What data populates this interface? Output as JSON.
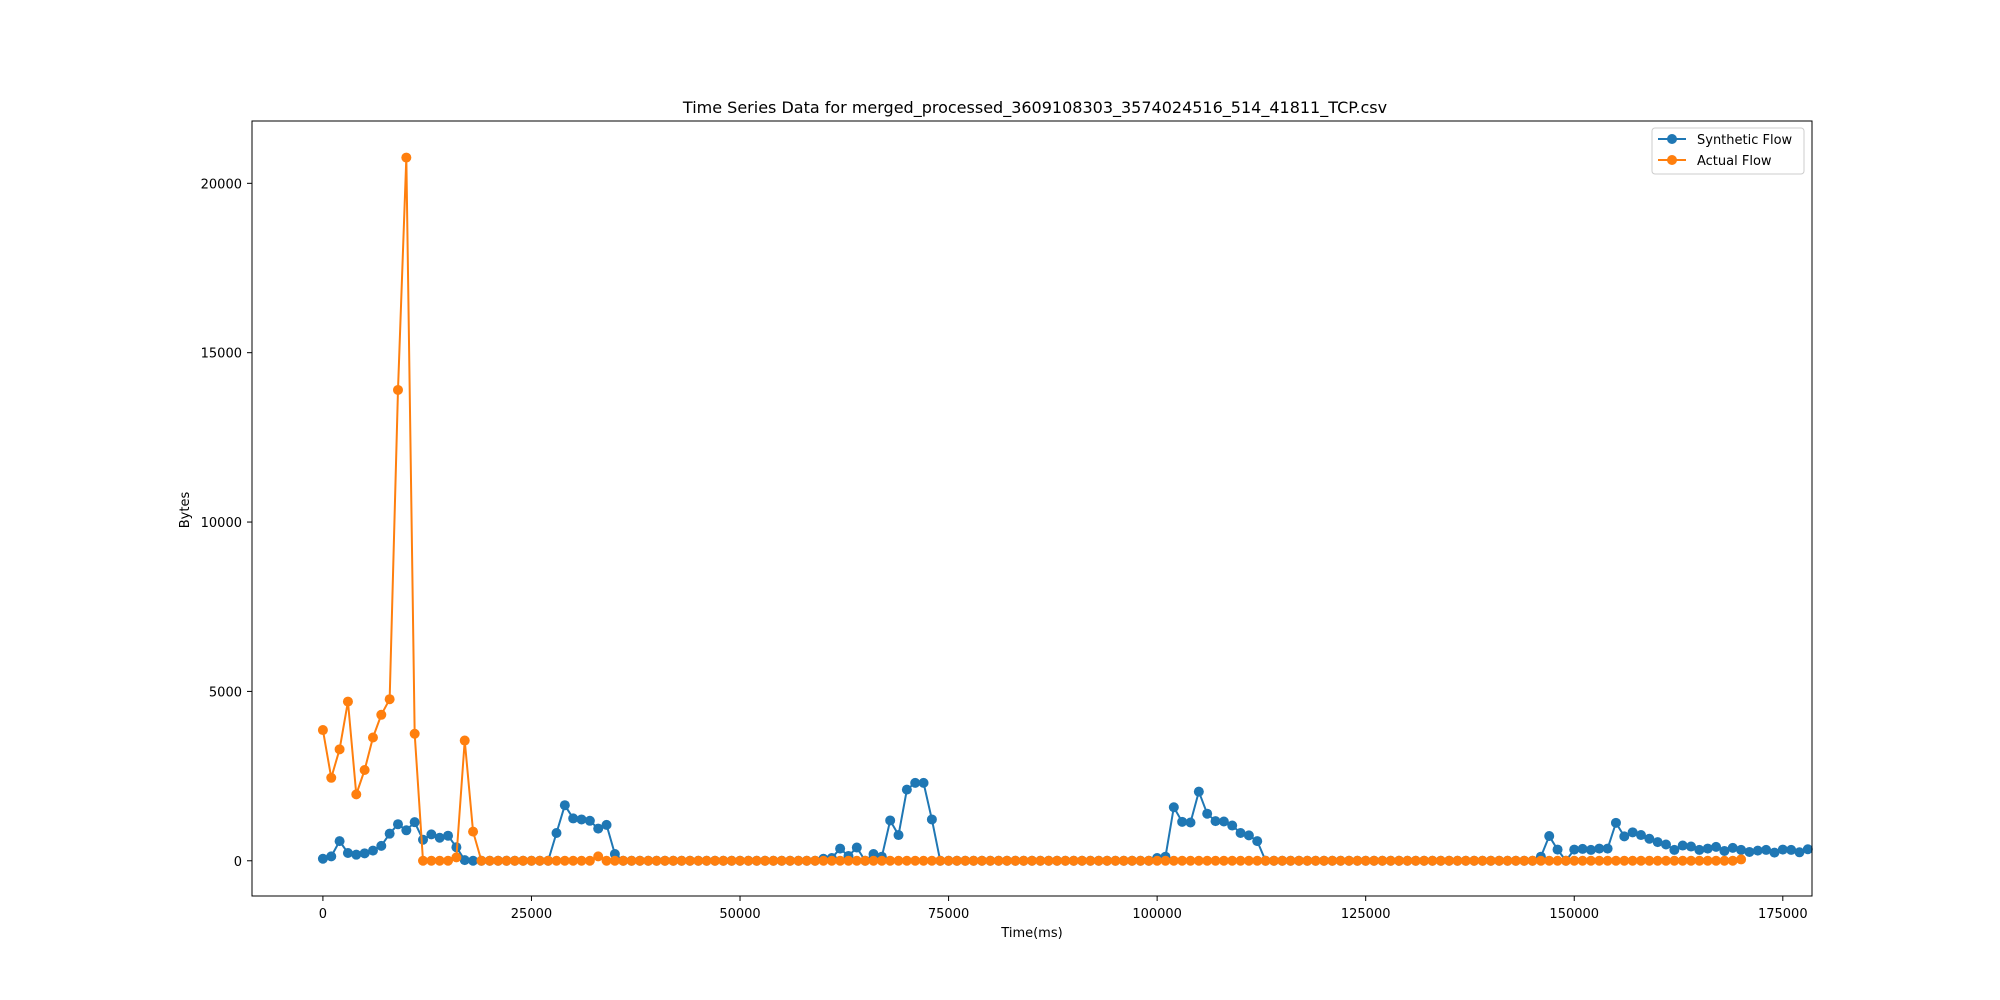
{
  "chart_data": {
    "type": "line",
    "title": "Time Series Data for merged_processed_3609108303_3574024516_514_41811_TCP.csv",
    "xlabel": "Time(ms)",
    "ylabel": "Bytes",
    "xlim": [
      -8500,
      178500
    ],
    "ylim": [
      -1040,
      21840
    ],
    "xticks": [
      0,
      25000,
      50000,
      75000,
      100000,
      125000,
      150000,
      175000
    ],
    "xtick_labels": [
      "0",
      "25000",
      "50000",
      "75000",
      "100000",
      "125000",
      "150000",
      "175000"
    ],
    "yticks": [
      0,
      5000,
      10000,
      15000,
      20000
    ],
    "ytick_labels": [
      "0",
      "5000",
      "10000",
      "15000",
      "20000"
    ],
    "grid": false,
    "legend_position": "top-right",
    "x_step": 1000,
    "x_start": 0,
    "series": [
      {
        "name": "Synthetic Flow",
        "color": "#1f77b4",
        "values": [
          60,
          130,
          580,
          230,
          180,
          220,
          300,
          440,
          800,
          1080,
          900,
          1140,
          620,
          780,
          680,
          740,
          400,
          20,
          0,
          0,
          0,
          0,
          0,
          0,
          0,
          0,
          0,
          0,
          820,
          1640,
          1250,
          1220,
          1180,
          950,
          1060,
          200,
          0,
          0,
          0,
          0,
          0,
          0,
          0,
          0,
          0,
          0,
          0,
          0,
          0,
          0,
          0,
          0,
          0,
          0,
          0,
          0,
          0,
          0,
          0,
          0,
          60,
          80,
          360,
          140,
          390,
          0,
          200,
          120,
          1190,
          760,
          2100,
          2300,
          2300,
          1220,
          0,
          0,
          0,
          0,
          0,
          0,
          0,
          0,
          0,
          0,
          0,
          0,
          0,
          0,
          0,
          0,
          0,
          0,
          0,
          0,
          0,
          0,
          0,
          0,
          0,
          0,
          80,
          120,
          1580,
          1150,
          1130,
          2040,
          1390,
          1170,
          1160,
          1040,
          820,
          750,
          580,
          0,
          0,
          0,
          0,
          0,
          0,
          0,
          0,
          0,
          0,
          0,
          0,
          0,
          0,
          0,
          0,
          0,
          0,
          0,
          0,
          0,
          0,
          0,
          0,
          0,
          0,
          0,
          0,
          0,
          0,
          0,
          0,
          0,
          120,
          730,
          330,
          0,
          330,
          350,
          320,
          360,
          360,
          1120,
          720,
          840,
          760,
          650,
          550,
          480,
          320,
          450,
          420,
          320,
          360,
          410,
          290,
          380,
          320,
          260,
          300,
          320,
          240,
          330,
          320,
          250,
          340
        ]
      },
      {
        "name": "Actual Flow",
        "color": "#ff7f0e",
        "values": [
          3860,
          2450,
          3290,
          4700,
          1960,
          2680,
          3640,
          4310,
          4770,
          13900,
          20760,
          3750,
          0,
          0,
          0,
          0,
          100,
          3550,
          860,
          0,
          0,
          0,
          0,
          0,
          0,
          0,
          0,
          0,
          0,
          0,
          0,
          0,
          0,
          130,
          0,
          0,
          0,
          0,
          0,
          0,
          0,
          0,
          0,
          0,
          0,
          0,
          0,
          0,
          0,
          0,
          0,
          0,
          0,
          0,
          0,
          0,
          0,
          0,
          0,
          0,
          0,
          0,
          0,
          0,
          0,
          0,
          0,
          0,
          0,
          0,
          0,
          0,
          0,
          0,
          0,
          0,
          0,
          0,
          0,
          0,
          0,
          0,
          0,
          0,
          0,
          0,
          0,
          0,
          0,
          0,
          0,
          0,
          0,
          0,
          0,
          0,
          0,
          0,
          0,
          0,
          0,
          0,
          0,
          0,
          0,
          0,
          0,
          0,
          0,
          0,
          0,
          0,
          0,
          0,
          0,
          0,
          0,
          0,
          0,
          0,
          0,
          0,
          0,
          0,
          0,
          0,
          0,
          0,
          0,
          0,
          0,
          0,
          0,
          0,
          0,
          0,
          0,
          0,
          0,
          0,
          0,
          0,
          0,
          0,
          0,
          0,
          0,
          0,
          0,
          0,
          0,
          0,
          0,
          0,
          0,
          0,
          0,
          0,
          0,
          0,
          0,
          0,
          0,
          0,
          0,
          0,
          0,
          0,
          0,
          0,
          40
        ]
      }
    ]
  }
}
